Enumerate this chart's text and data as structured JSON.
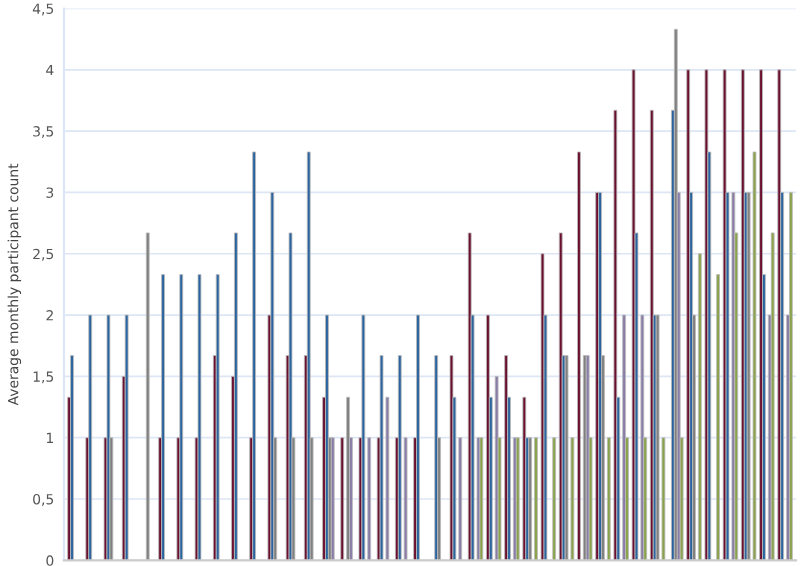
{
  "chart_data": {
    "type": "bar",
    "ylabel": "Average monthly participant count",
    "categories": [
      null,
      null,
      null,
      null,
      null,
      null,
      null,
      null,
      null,
      null,
      null,
      null,
      null,
      null,
      null,
      null,
      null,
      null,
      null,
      null,
      null,
      null,
      null,
      null,
      null,
      null,
      null,
      null,
      null,
      null,
      null,
      null,
      null,
      null,
      null,
      null,
      null,
      null,
      null,
      null
    ],
    "series": [
      {
        "color": "#6b0f2f",
        "values": [
          1.33,
          1,
          1,
          1.5,
          null,
          1,
          1,
          1,
          1.67,
          1.5,
          1,
          2,
          1.67,
          1.67,
          1.33,
          1,
          1,
          1,
          1,
          1,
          null,
          1.67,
          2.67,
          2,
          1.67,
          1.33,
          2.5,
          2.67,
          3.33,
          3,
          3.67,
          4,
          3.67,
          null,
          4,
          4,
          4,
          4,
          4,
          4
        ]
      },
      {
        "color": "#2a64a0",
        "values": [
          1.67,
          2,
          2,
          2,
          null,
          2.33,
          2.33,
          2.33,
          2.33,
          2.67,
          3.33,
          3,
          2.67,
          3.33,
          2,
          null,
          2,
          1.67,
          1.67,
          2,
          1.67,
          1.33,
          2,
          1.33,
          1.33,
          1,
          2,
          1.67,
          null,
          3,
          1.33,
          2.67,
          2,
          3.67,
          3,
          3.33,
          3,
          3,
          2.33,
          3
        ]
      },
      {
        "color": "#808080",
        "values": [
          null,
          null,
          1,
          null,
          2.67,
          null,
          null,
          null,
          null,
          null,
          null,
          1,
          1,
          1,
          1,
          1.33,
          null,
          null,
          null,
          null,
          1,
          null,
          null,
          null,
          null,
          1,
          null,
          1.67,
          1.67,
          1.67,
          null,
          null,
          2,
          4.33,
          2,
          null,
          null,
          3,
          null,
          null
        ]
      },
      {
        "color": "#8a7ca8",
        "values": [
          null,
          null,
          null,
          null,
          null,
          null,
          null,
          null,
          null,
          null,
          null,
          null,
          null,
          null,
          1,
          1,
          1,
          1.33,
          1,
          null,
          null,
          1,
          1,
          1.5,
          1,
          null,
          null,
          null,
          1.67,
          null,
          2,
          2,
          null,
          3,
          null,
          null,
          3,
          null,
          2,
          2
        ]
      },
      {
        "color": "#8aa34a",
        "values": [
          null,
          null,
          null,
          null,
          null,
          null,
          null,
          null,
          null,
          null,
          null,
          null,
          null,
          null,
          null,
          null,
          null,
          null,
          null,
          null,
          null,
          null,
          1,
          1,
          1,
          1,
          1,
          1,
          1,
          1,
          1,
          1,
          1,
          1,
          2.5,
          2.33,
          2.67,
          3.33,
          2.67,
          3
        ]
      }
    ],
    "ylim": [
      0,
      4.5
    ],
    "yticks": [
      0,
      {
        "value": 0.5,
        "label": "0,5"
      },
      1,
      {
        "value": 1.5,
        "label": "1,5"
      },
      2,
      {
        "value": 2.5,
        "label": "2,5"
      },
      3,
      {
        "value": 3.5,
        "label": "3,5"
      },
      4,
      {
        "value": 4.5,
        "label": "4,5"
      }
    ],
    "grid": "y",
    "legend": false,
    "tick_labels": "y"
  }
}
